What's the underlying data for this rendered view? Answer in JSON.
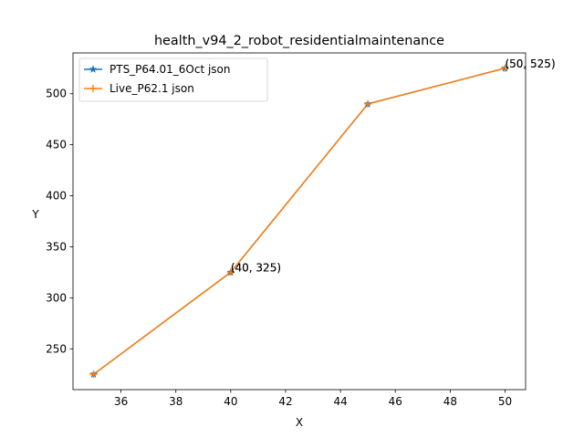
{
  "chart_data": {
    "type": "line",
    "title": "health_v94_2_robot_residentialmaintenance",
    "xlabel": "X",
    "ylabel": "Y",
    "xlim": [
      34.25,
      50.75
    ],
    "ylim": [
      210,
      540
    ],
    "xticks": [
      36,
      38,
      40,
      42,
      44,
      46,
      48,
      50
    ],
    "yticks": [
      250,
      300,
      350,
      400,
      450,
      500
    ],
    "grid": false,
    "legend_position": "top-left",
    "x": [
      35,
      40,
      45,
      50
    ],
    "series": [
      {
        "name": "PTS_P64.01_6Oct json",
        "marker": "star",
        "color": "#1f77b4",
        "values": [
          225,
          325,
          490,
          525
        ]
      },
      {
        "name": "Live_P62.1 json",
        "marker": "plus",
        "color": "#ff7f0e",
        "values": [
          225,
          325,
          490,
          525
        ]
      }
    ],
    "annotations": [
      {
        "x": 40,
        "y": 325,
        "text": "(40, 325)"
      },
      {
        "x": 50,
        "y": 525,
        "text": "(50, 525)"
      }
    ]
  }
}
